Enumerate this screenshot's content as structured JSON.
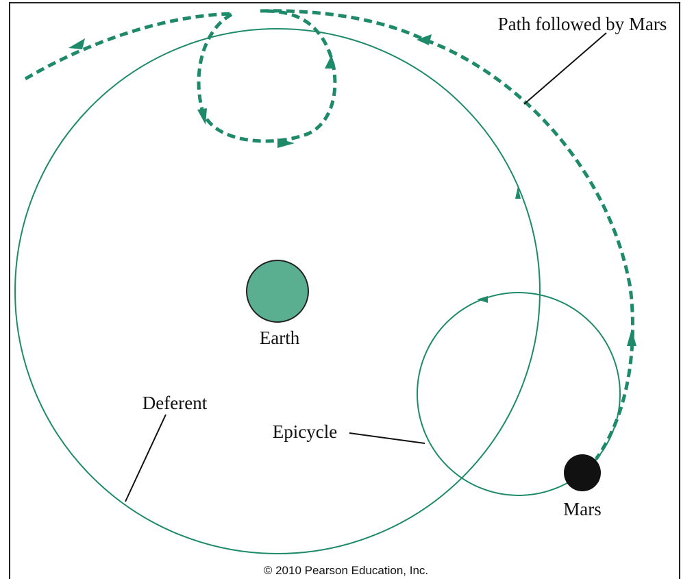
{
  "labels": {
    "path": "Path followed by Mars",
    "earth": "Earth",
    "deferent": "Deferent",
    "epicycle": "Epicycle",
    "mars": "Mars"
  },
  "copyright": "© 2010 Pearson Education, Inc."
}
